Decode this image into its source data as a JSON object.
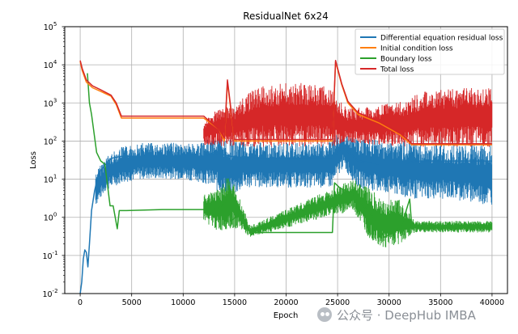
{
  "chart_data": {
    "type": "line",
    "title": "ResidualNet 6x24",
    "xlabel": "Epoch",
    "ylabel": "Loss",
    "yscale": "log",
    "xlim": [
      -1500,
      41500
    ],
    "ylim": [
      0.01,
      100000
    ],
    "grid": true,
    "legend_position": "top-right",
    "xticks": [
      0,
      5000,
      10000,
      15000,
      20000,
      25000,
      30000,
      35000,
      40000
    ],
    "xtick_labels": [
      "0",
      "5000",
      "10000",
      "15000",
      "20000",
      "25000",
      "30000",
      "35000",
      "40000"
    ],
    "yticks": [
      0.01,
      0.1,
      1,
      10,
      100,
      1000,
      10000,
      100000
    ],
    "ytick_labels": [
      {
        "base": "10",
        "exp": "-2"
      },
      {
        "base": "10",
        "exp": "-1"
      },
      {
        "base": "10",
        "exp": "0"
      },
      {
        "base": "10",
        "exp": "1"
      },
      {
        "base": "10",
        "exp": "2"
      },
      {
        "base": "10",
        "exp": "3"
      },
      {
        "base": "10",
        "exp": "4"
      },
      {
        "base": "10",
        "exp": "5"
      }
    ],
    "series": [
      {
        "name": "Differential equation residual loss",
        "color": "#1f77b4",
        "points": [
          [
            0,
            0.01
          ],
          [
            150,
            0.02
          ],
          [
            300,
            0.08
          ],
          [
            450,
            0.14
          ],
          [
            600,
            0.12
          ],
          [
            750,
            0.05
          ],
          [
            900,
            0.2
          ],
          [
            1100,
            1.5
          ],
          [
            1400,
            5
          ],
          [
            1800,
            15
          ],
          [
            2500,
            25
          ],
          [
            3000,
            35
          ],
          [
            4000,
            40
          ],
          [
            6000,
            40
          ],
          [
            8000,
            40
          ],
          [
            10000,
            40
          ],
          [
            12000,
            40
          ],
          [
            13000,
            50
          ],
          [
            14500,
            40
          ],
          [
            17000,
            35
          ],
          [
            20000,
            35
          ],
          [
            22000,
            35
          ],
          [
            24500,
            35
          ],
          [
            25500,
            70
          ],
          [
            27000,
            30
          ],
          [
            29000,
            25
          ],
          [
            31500,
            25
          ],
          [
            32500,
            30
          ],
          [
            35000,
            30
          ],
          [
            38000,
            30
          ],
          [
            40000,
            30
          ]
        ],
        "band_low": [
          [
            1500,
            2
          ],
          [
            2500,
            5
          ],
          [
            4000,
            8
          ],
          [
            6000,
            10
          ],
          [
            10000,
            10
          ],
          [
            12000,
            8
          ],
          [
            14500,
            3
          ],
          [
            16000,
            6
          ],
          [
            20000,
            6
          ],
          [
            24500,
            6
          ],
          [
            25500,
            20
          ],
          [
            27000,
            6
          ],
          [
            30000,
            4
          ],
          [
            32000,
            3
          ],
          [
            36000,
            3
          ],
          [
            40000,
            2
          ]
        ],
        "band_high": [
          [
            1500,
            15
          ],
          [
            2500,
            40
          ],
          [
            4000,
            70
          ],
          [
            6000,
            90
          ],
          [
            10000,
            90
          ],
          [
            12000,
            90
          ],
          [
            13000,
            150
          ],
          [
            14500,
            110
          ],
          [
            18000,
            90
          ],
          [
            24000,
            90
          ],
          [
            25500,
            200
          ],
          [
            27000,
            120
          ],
          [
            30000,
            100
          ],
          [
            31500,
            100
          ],
          [
            34000,
            80
          ],
          [
            40000,
            80
          ]
        ]
      },
      {
        "name": "Initial condition loss",
        "color": "#ff7f0e",
        "points": [
          [
            0,
            12000
          ],
          [
            200,
            7000
          ],
          [
            600,
            3500
          ],
          [
            1200,
            2500
          ],
          [
            2000,
            2000
          ],
          [
            3000,
            1500
          ],
          [
            3500,
            900
          ],
          [
            4000,
            400
          ],
          [
            6000,
            400
          ],
          [
            9000,
            400
          ],
          [
            12000,
            400
          ],
          [
            13500,
            200
          ],
          [
            14000,
            100
          ],
          [
            14300,
            3500
          ],
          [
            15000,
            100
          ],
          [
            20000,
            100
          ],
          [
            24500,
            100
          ],
          [
            24800,
            12000
          ],
          [
            25400,
            3000
          ],
          [
            26000,
            1000
          ],
          [
            27000,
            500
          ],
          [
            29000,
            300
          ],
          [
            31000,
            150
          ],
          [
            31800,
            100
          ],
          [
            32200,
            80
          ],
          [
            34000,
            80
          ],
          [
            37000,
            80
          ],
          [
            40000,
            80
          ]
        ]
      },
      {
        "name": "Boundary loss",
        "color": "#2ca02c",
        "points": [
          [
            700,
            6000
          ],
          [
            900,
            1000
          ],
          [
            1100,
            500
          ],
          [
            1300,
            200
          ],
          [
            1600,
            50
          ],
          [
            2000,
            30
          ],
          [
            2400,
            25
          ],
          [
            2900,
            2
          ],
          [
            3200,
            2
          ],
          [
            3600,
            0.5
          ],
          [
            3800,
            1.5
          ],
          [
            4500,
            1.5
          ],
          [
            8000,
            1.6
          ],
          [
            12000,
            1.6
          ],
          [
            12500,
            2.5
          ],
          [
            13300,
            1.5
          ],
          [
            14300,
            3
          ],
          [
            14600,
            0.8
          ],
          [
            15500,
            1.2
          ],
          [
            16500,
            0.4
          ],
          [
            20000,
            0.4
          ],
          [
            24000,
            0.4
          ],
          [
            24500,
            0.4
          ],
          [
            24700,
            8
          ],
          [
            25200,
            6
          ],
          [
            26500,
            4
          ],
          [
            27500,
            2
          ],
          [
            28500,
            1
          ],
          [
            29500,
            0.3
          ],
          [
            30500,
            0.4
          ],
          [
            31200,
            0.6
          ],
          [
            32000,
            3
          ],
          [
            32200,
            0.6
          ],
          [
            35000,
            0.6
          ],
          [
            38000,
            0.6
          ],
          [
            40000,
            0.6
          ]
        ],
        "band_low": [
          [
            12000,
            0.8
          ],
          [
            13500,
            0.4
          ],
          [
            14500,
            0.5
          ],
          [
            15500,
            0.5
          ],
          [
            16500,
            0.3
          ],
          [
            26500,
            1.5
          ],
          [
            28000,
            0.3
          ],
          [
            29500,
            0.15
          ],
          [
            31000,
            0.2
          ],
          [
            32500,
            0.4
          ],
          [
            40000,
            0.4
          ]
        ],
        "band_high": [
          [
            12000,
            4
          ],
          [
            13500,
            6
          ],
          [
            14500,
            15
          ],
          [
            15500,
            3
          ],
          [
            16500,
            0.6
          ],
          [
            26500,
            10
          ],
          [
            28000,
            6
          ],
          [
            29500,
            3
          ],
          [
            31000,
            3
          ],
          [
            32500,
            0.8
          ],
          [
            40000,
            0.8
          ]
        ]
      },
      {
        "name": "Total loss",
        "color": "#d62728",
        "points": [
          [
            0,
            13000
          ],
          [
            200,
            8000
          ],
          [
            600,
            4000
          ],
          [
            1200,
            2800
          ],
          [
            2000,
            2200
          ],
          [
            3000,
            1600
          ],
          [
            3500,
            1000
          ],
          [
            4000,
            450
          ],
          [
            6000,
            450
          ],
          [
            9000,
            450
          ],
          [
            12000,
            450
          ],
          [
            13500,
            200
          ],
          [
            14000,
            120
          ],
          [
            14300,
            4000
          ],
          [
            15000,
            110
          ],
          [
            20000,
            110
          ],
          [
            24500,
            110
          ],
          [
            24800,
            13000
          ],
          [
            25400,
            3200
          ],
          [
            26000,
            1100
          ],
          [
            27000,
            550
          ],
          [
            29000,
            330
          ],
          [
            31000,
            170
          ],
          [
            31800,
            110
          ],
          [
            32200,
            85
          ],
          [
            34000,
            85
          ],
          [
            37000,
            85
          ],
          [
            40000,
            85
          ]
        ],
        "band_low": [
          [
            12000,
            80
          ],
          [
            15000,
            70
          ],
          [
            24500,
            70
          ],
          [
            26000,
            90
          ],
          [
            31500,
            70
          ],
          [
            40000,
            70
          ]
        ],
        "band_high": [
          [
            12000,
            300
          ],
          [
            13000,
            600
          ],
          [
            15000,
            900
          ],
          [
            17000,
            2500
          ],
          [
            20000,
            3500
          ],
          [
            24000,
            3000
          ],
          [
            26000,
            700
          ],
          [
            28000,
            800
          ],
          [
            30000,
            1000
          ],
          [
            31500,
            1200
          ],
          [
            33000,
            2000
          ],
          [
            36000,
            2500
          ],
          [
            40000,
            2500
          ]
        ]
      }
    ]
  },
  "watermark": {
    "icon": "wechat-icon",
    "text": "公众号 · DeepHub IMBA"
  }
}
